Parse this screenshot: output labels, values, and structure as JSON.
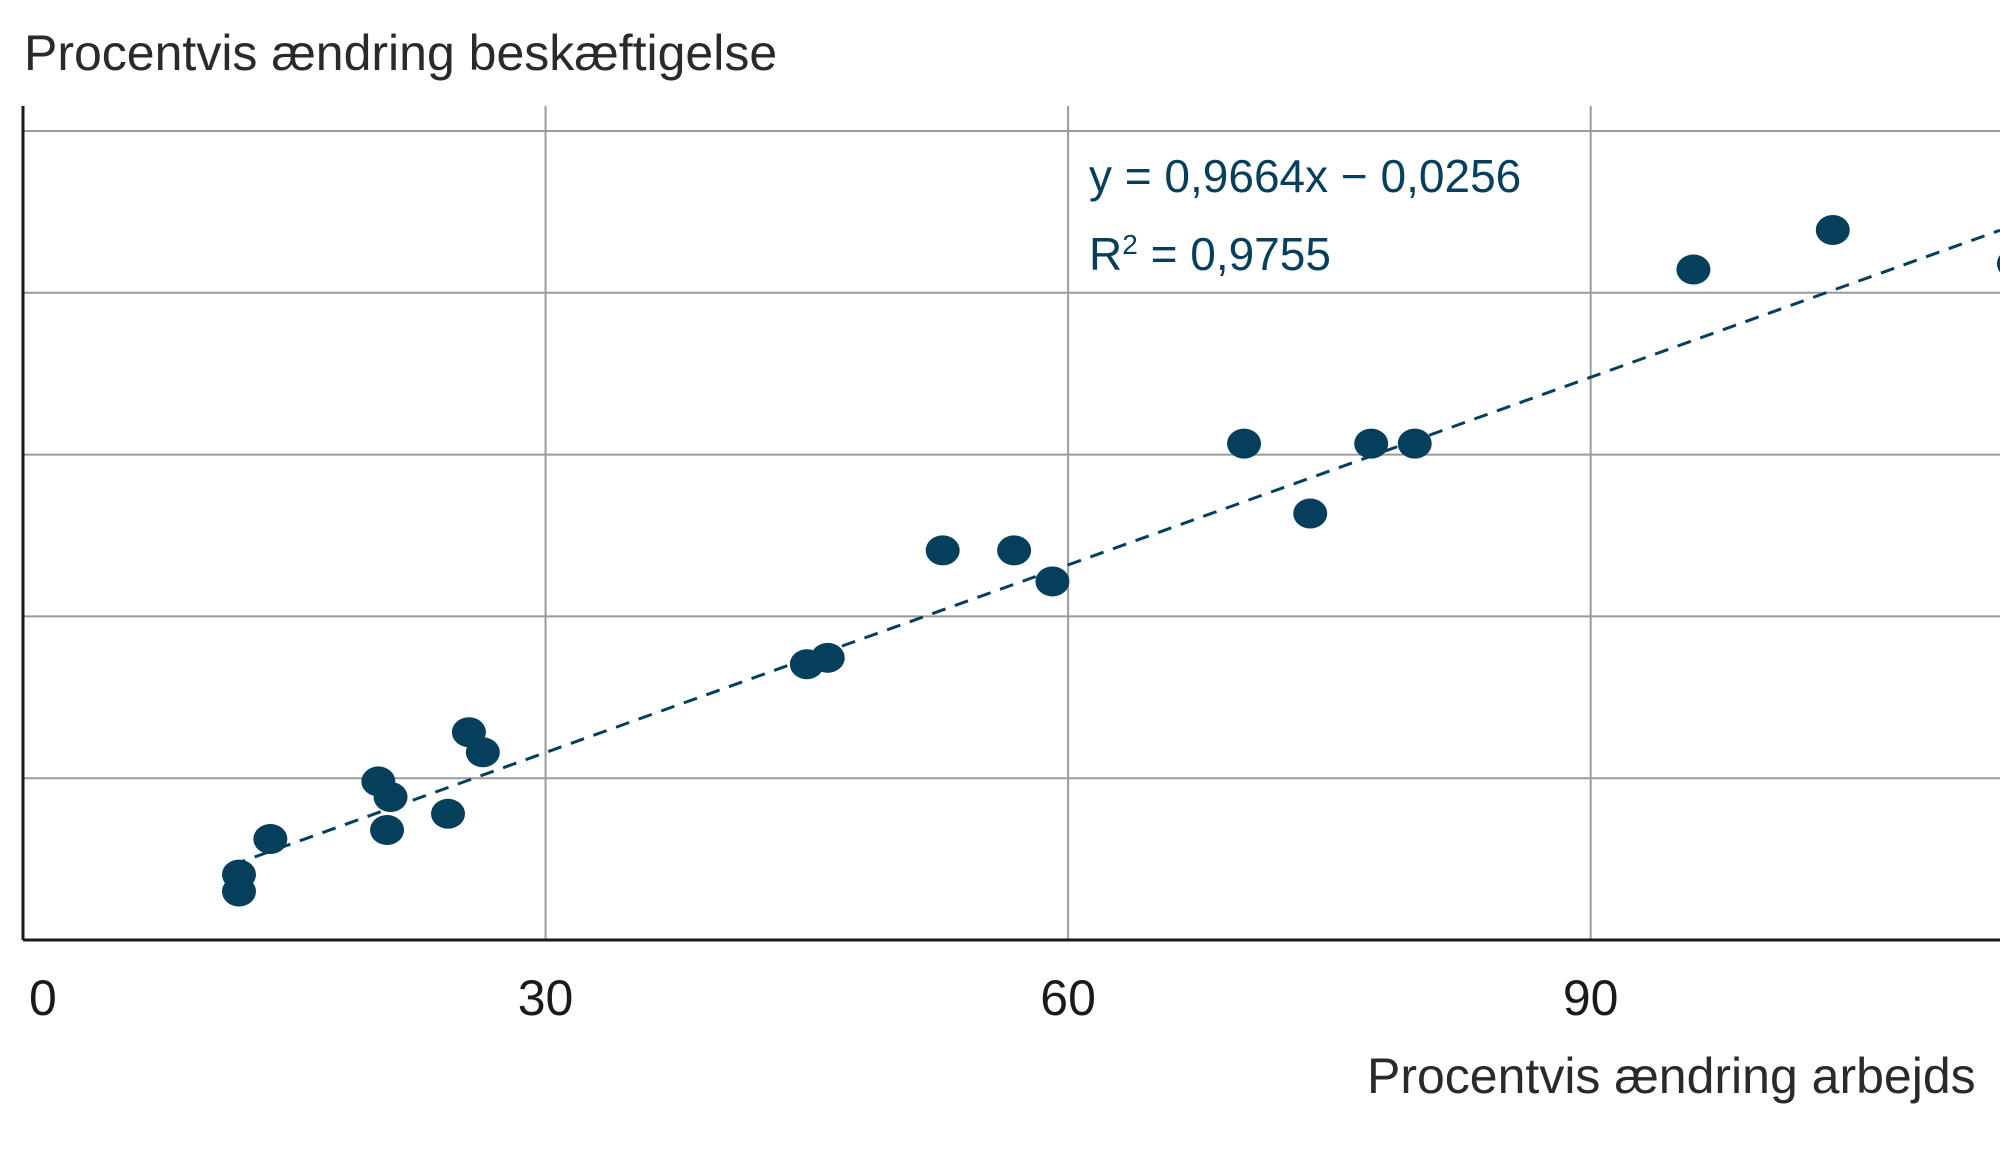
{
  "chart_data": {
    "type": "scatter",
    "title": "",
    "ylabel": "Procentvis ændring beskæftigelse",
    "xlabel": "Procentvis ændring arbejds",
    "xlim": [
      0,
      113.5
    ],
    "ylim": [
      0,
      125
    ],
    "x_ticks": [
      0,
      30,
      60,
      90
    ],
    "x_tick_labels": [
      "0",
      "30",
      "60",
      "90"
    ],
    "y_gridlines": [
      25,
      50,
      75,
      100,
      125
    ],
    "grid": true,
    "colors": {
      "points": "#053f5c",
      "trendline": "#053f5c",
      "equation": "#053f5c"
    },
    "trendline": {
      "slope": 0.9664,
      "intercept": -0.0256,
      "style": "dashed",
      "equation_label": "y = 0,9664x − 0,0256",
      "r2_prefix": "R",
      "r2_sup": "2",
      "r2_value": " = 0,9755"
    },
    "points": [
      {
        "x": 12.4,
        "y": 10.1
      },
      {
        "x": 12.4,
        "y": 7.5
      },
      {
        "x": 14.2,
        "y": 15.6
      },
      {
        "x": 20.4,
        "y": 24.5
      },
      {
        "x": 21.1,
        "y": 22.1
      },
      {
        "x": 20.9,
        "y": 17.0
      },
      {
        "x": 24.4,
        "y": 19.5
      },
      {
        "x": 25.6,
        "y": 32.1
      },
      {
        "x": 26.4,
        "y": 29.0
      },
      {
        "x": 45.0,
        "y": 42.6
      },
      {
        "x": 46.2,
        "y": 43.6
      },
      {
        "x": 52.8,
        "y": 60.2
      },
      {
        "x": 56.9,
        "y": 60.2
      },
      {
        "x": 59.1,
        "y": 55.4
      },
      {
        "x": 70.1,
        "y": 76.7
      },
      {
        "x": 73.9,
        "y": 65.9
      },
      {
        "x": 77.4,
        "y": 76.7
      },
      {
        "x": 79.9,
        "y": 76.7
      },
      {
        "x": 95.9,
        "y": 103.6
      },
      {
        "x": 103.9,
        "y": 109.7
      },
      {
        "x": 114.3,
        "y": 104.5
      }
    ]
  }
}
